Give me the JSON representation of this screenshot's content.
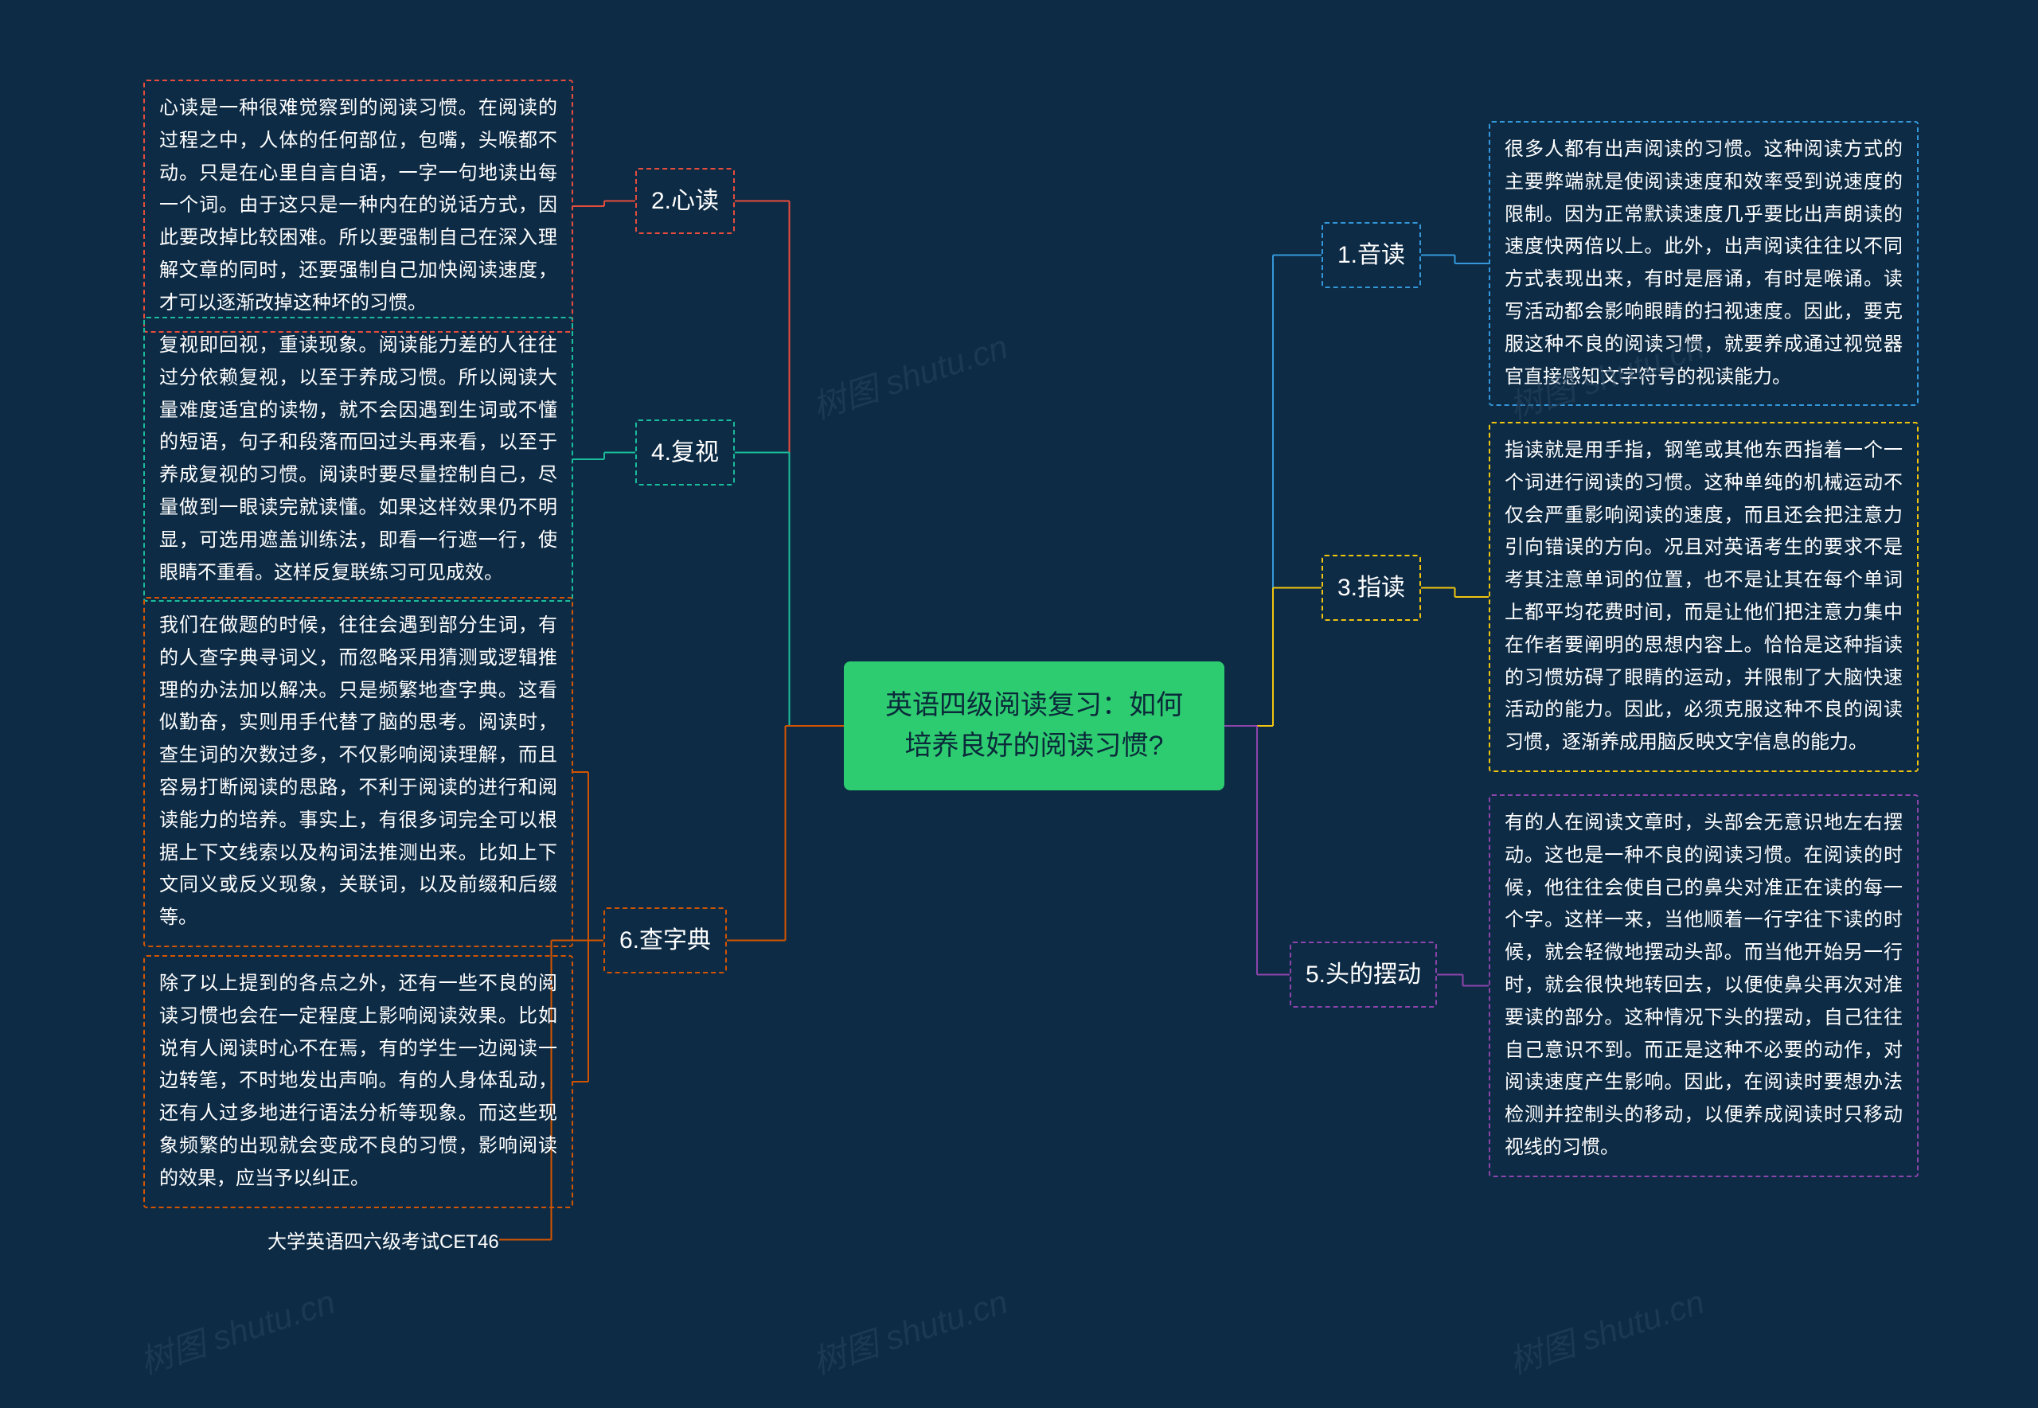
{
  "colors": {
    "background": "#0d2b45",
    "center_bg": "#2ecc71",
    "center_text": "#0a2a3a",
    "text": "#ffffff",
    "branches": [
      "#3498db",
      "#e74c3c",
      "#f1c40f",
      "#1abc9c",
      "#8e44ad",
      "#d35400"
    ],
    "watermark": "#2a4560"
  },
  "sizes": {
    "center_font": 34,
    "branch_font": 30,
    "leaf_font": 24
  },
  "center": "英语四级阅读复习：如何培养良好的阅读习惯?",
  "right": [
    {
      "label": "1.音读",
      "text": "很多人都有出声阅读的习惯。这种阅读方式的主要弊端就是使阅读速度和效率受到说速度的限制。因为正常默读速度几乎要比出声朗读的速度快两倍以上。此外，出声阅读往往以不同方式表现出来，有时是唇诵，有时是喉诵。读写活动都会影响眼睛的扫视速度。因此，要克服这种不良的阅读习惯，就要养成通过视觉器官直接感知文字符号的视读能力。"
    },
    {
      "label": "3.指读",
      "text": "指读就是用手指，钢笔或其他东西指着一个一个词进行阅读的习惯。这种单纯的机械运动不仅会严重影响阅读的速度，而且还会把注意力引向错误的方向。况且对英语考生的要求不是考其注意单词的位置，也不是让其在每个单词上都平均花费时间，而是让他们把注意力集中在作者要阐明的思想内容上。恰恰是这种指读的习惯妨碍了眼睛的运动，并限制了大脑快速活动的能力。因此，必须克服这种不良的阅读习惯，逐渐养成用脑反映文字信息的能力。"
    },
    {
      "label": "5.头的摆动",
      "text": "有的人在阅读文章时，头部会无意识地左右摆动。这也是一种不良的阅读习惯。在阅读的时候，他往往会使自己的鼻尖对准正在读的每一个字。这样一来，当他顺着一行字往下读的时候，就会轻微地摆动头部。而当他开始另一行时，就会很快地转回去，以便使鼻尖再次对准要读的部分。这种情况下头的摆动，自己往往自己意识不到。而正是这种不必要的动作，对阅读速度产生影响。因此，在阅读时要想办法检测并控制头的移动，以便养成阅读时只移动视线的习惯。"
    }
  ],
  "left": [
    {
      "label": "2.心读",
      "text": "心读是一种很难觉察到的阅读习惯。在阅读的过程之中，人体的任何部位，包嘴，头喉都不动。只是在心里自言自语，一字一句地读出每一个词。由于这只是一种内在的说话方式，因此要改掉比较困难。所以要强制自己在深入理解文章的同时，还要强制自己加快阅读速度，才可以逐渐改掉这种坏的习惯。"
    },
    {
      "label": "4.复视",
      "text": "复视即回视，重读现象。阅读能力差的人往往过分依赖复视，以至于养成习惯。所以阅读大量难度适宜的读物，就不会因遇到生词或不懂的短语，句子和段落而回过头再来看，以至于养成复视的习惯。阅读时要尽量控制自己，尽量做到一眼读完就读懂。如果这样效果仍不明显，可选用遮盖训练法，即看一行遮一行，使眼睛不重看。这样反复联练习可见成效。"
    },
    {
      "label": "6.查字典",
      "texts": [
        "我们在做题的时候，往往会遇到部分生词，有的人查字典寻词义，而忽略采用猜测或逻辑推理的办法加以解决。只是频繁地查字典。这看似勤奋，实则用手代替了脑的思考。阅读时，查生词的次数过多，不仅影响阅读理解，而且容易打断阅读的思路，不利于阅读的进行和阅读能力的培养。事实上，有很多词完全可以根据上下文线索以及构词法推测出来。比如上下文同义或反义现象，关联词，以及前缀和后缀等。",
        "除了以上提到的各点之外，还有一些不良的阅读习惯也会在一定程度上影响阅读效果。比如说有人阅读时心不在焉，有的学生一边阅读一边转笔，不时地发出声响。有的人身体乱动，还有人过多地进行语法分析等现象。而这些现象频繁的出现就会变成不良的习惯，影响阅读的效果，应当予以纠正。",
        "大学英语四六级考试CET46"
      ]
    }
  ],
  "watermark": "树图 shutu.cn"
}
